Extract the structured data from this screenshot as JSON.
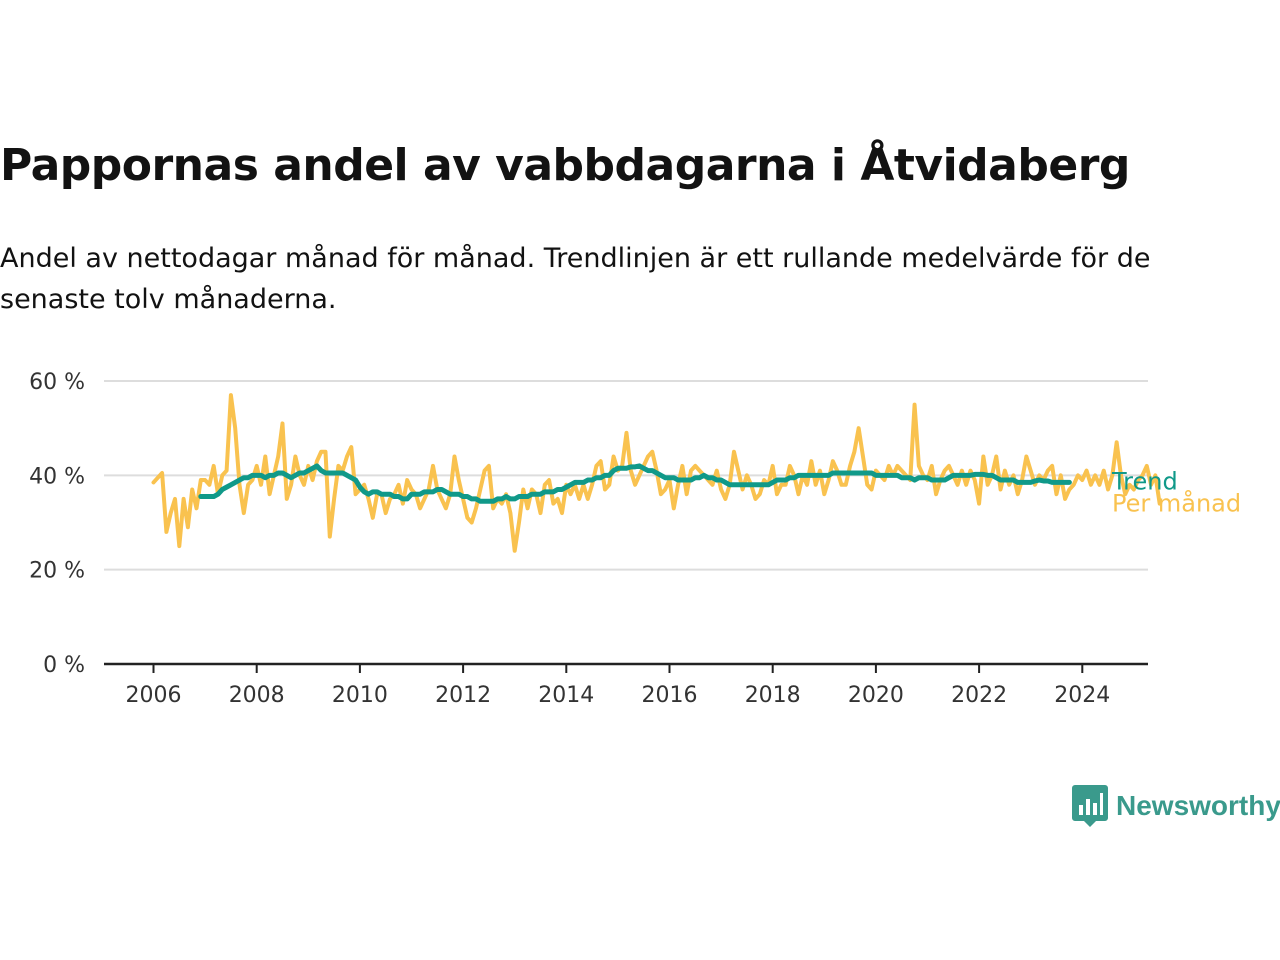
{
  "title": "Pappornas andel av vabbdagarna i Åtvidaberg",
  "subtitle": "Andel av nettodagar månad för månad. Trendlinjen är ett rullande medelvärde för de senaste tolv månaderna.",
  "brand": {
    "name": "Newsworthy",
    "color": "#3a9a8c",
    "icon": "bar-chart-speech-bubble-icon"
  },
  "colors": {
    "trend": "#109989",
    "monthly": "#f9c24f",
    "axis": "#222222",
    "grid": "#dddddd",
    "tick_text": "#333333"
  },
  "chart_data": {
    "type": "line",
    "title": "Pappornas andel av vabbdagarna i Åtvidaberg",
    "xlabel": "",
    "ylabel": "",
    "xlim": [
      2005.7,
      2025.3
    ],
    "ylim": [
      0,
      60
    ],
    "x_ticks": [
      2006,
      2008,
      2010,
      2012,
      2014,
      2016,
      2018,
      2020,
      2022,
      2024
    ],
    "y_ticks": [
      0,
      20,
      40,
      60
    ],
    "y_tick_labels": [
      "0 %",
      "20 %",
      "40 %",
      "60 %"
    ],
    "grid": true,
    "legend": "line-end labels",
    "x_start": 2006.0,
    "x_step": 0.08333,
    "series": [
      {
        "name": "Per månad",
        "color": "#f9c24f",
        "values": [
          38.5,
          39.5,
          40.5,
          28,
          32,
          35,
          25,
          35,
          29,
          37,
          33,
          39,
          39,
          38,
          42,
          36,
          40,
          41,
          57,
          50,
          38,
          32,
          38,
          39,
          42,
          38,
          44,
          36,
          40,
          44,
          51,
          35,
          38,
          44,
          40,
          38,
          42,
          39,
          43,
          45,
          45,
          27,
          35,
          42,
          41,
          44,
          46,
          36,
          37,
          38,
          35,
          31,
          36,
          36,
          32,
          35,
          36,
          38,
          34,
          39,
          37,
          36,
          33,
          35,
          37,
          42,
          37,
          35,
          33,
          36,
          44,
          39,
          35,
          31,
          30,
          33,
          37,
          41,
          42,
          33,
          35,
          34,
          36,
          32,
          24,
          30,
          37,
          33,
          37,
          36,
          32,
          38,
          39,
          34,
          35,
          32,
          38,
          36,
          38,
          35,
          38,
          35,
          38,
          42,
          43,
          37,
          38,
          44,
          41,
          42,
          49,
          41,
          38,
          40,
          42,
          44,
          45,
          41,
          36,
          37,
          39,
          33,
          38,
          42,
          36,
          41,
          42,
          41,
          40,
          39,
          38,
          41,
          37,
          35,
          38,
          45,
          41,
          37,
          40,
          38,
          35,
          36,
          39,
          38,
          42,
          36,
          38,
          38,
          42,
          40,
          36,
          40,
          38,
          43,
          38,
          41,
          36,
          39,
          43,
          41,
          38,
          38,
          42,
          45,
          50,
          44,
          38,
          37,
          41,
          40,
          39,
          42,
          40,
          42,
          41,
          40,
          39,
          55,
          42,
          40,
          39,
          42,
          36,
          39,
          41,
          42,
          40,
          38,
          41,
          38,
          41,
          39,
          34,
          44,
          38,
          40,
          44,
          37,
          41,
          38,
          40,
          36,
          39,
          44,
          41,
          38,
          40,
          39,
          41,
          42,
          36,
          40,
          35,
          37,
          38,
          40,
          39,
          41,
          38,
          40,
          38,
          41,
          37,
          40,
          47,
          40,
          36,
          38,
          37,
          39,
          40,
          42,
          38,
          40,
          34
        ]
      },
      {
        "name": "Trend",
        "color": "#109989",
        "x_start": 2006.917,
        "values": [
          35.5,
          35.5,
          35.5,
          35.5,
          36,
          37,
          37.5,
          38,
          38.5,
          39,
          39.5,
          39.5,
          40,
          40,
          40,
          39.5,
          40,
          40,
          40.5,
          40.5,
          40,
          39.5,
          40,
          40.5,
          40.5,
          41,
          41.5,
          42,
          41,
          40.5,
          40.5,
          40.5,
          40.5,
          40.5,
          40,
          39.5,
          39,
          37.5,
          36.5,
          36,
          36.5,
          36.5,
          36,
          36,
          36,
          35.5,
          35.5,
          35,
          35,
          36,
          36,
          36,
          36.5,
          36.5,
          36.5,
          37,
          37,
          36.5,
          36,
          36,
          36,
          35.5,
          35.5,
          35,
          35,
          34.5,
          34.5,
          34.5,
          34.5,
          35,
          35,
          35.5,
          35,
          35,
          35.5,
          35.5,
          35.5,
          36,
          36,
          36,
          36.5,
          36.5,
          36.5,
          37,
          37,
          37.5,
          38,
          38.5,
          38.5,
          38.5,
          39,
          39,
          39.5,
          39.5,
          40,
          40,
          41,
          41.5,
          41.5,
          41.5,
          41.8,
          41.8,
          42,
          41.5,
          41,
          41,
          40.5,
          40,
          39.5,
          39.5,
          39.5,
          39,
          39,
          39,
          39,
          39.5,
          39.5,
          40,
          39.5,
          39.5,
          39,
          39,
          38.5,
          38,
          38,
          38,
          38,
          38,
          38,
          38,
          38,
          38,
          38,
          38.5,
          39,
          39,
          39,
          39.5,
          39.5,
          40,
          40,
          40,
          40,
          40,
          40,
          40,
          40,
          40.5,
          40.5,
          40.5,
          40.5,
          40.5,
          40.5,
          40.5,
          40.5,
          40.5,
          40.5,
          40,
          40,
          40,
          40,
          40,
          40,
          39.5,
          39.5,
          39.5,
          39,
          39.5,
          39.5,
          39.5,
          39,
          39,
          39,
          39,
          39.5,
          40,
          40,
          40,
          40,
          40,
          40.2,
          40.2,
          40.2,
          40,
          40,
          39.5,
          39,
          39,
          39,
          39,
          38.5,
          38.5,
          38.5,
          38.5,
          38.8,
          39,
          38.8,
          38.8,
          38.5,
          38.5,
          38.5,
          38.5,
          38.5
        ]
      }
    ]
  }
}
